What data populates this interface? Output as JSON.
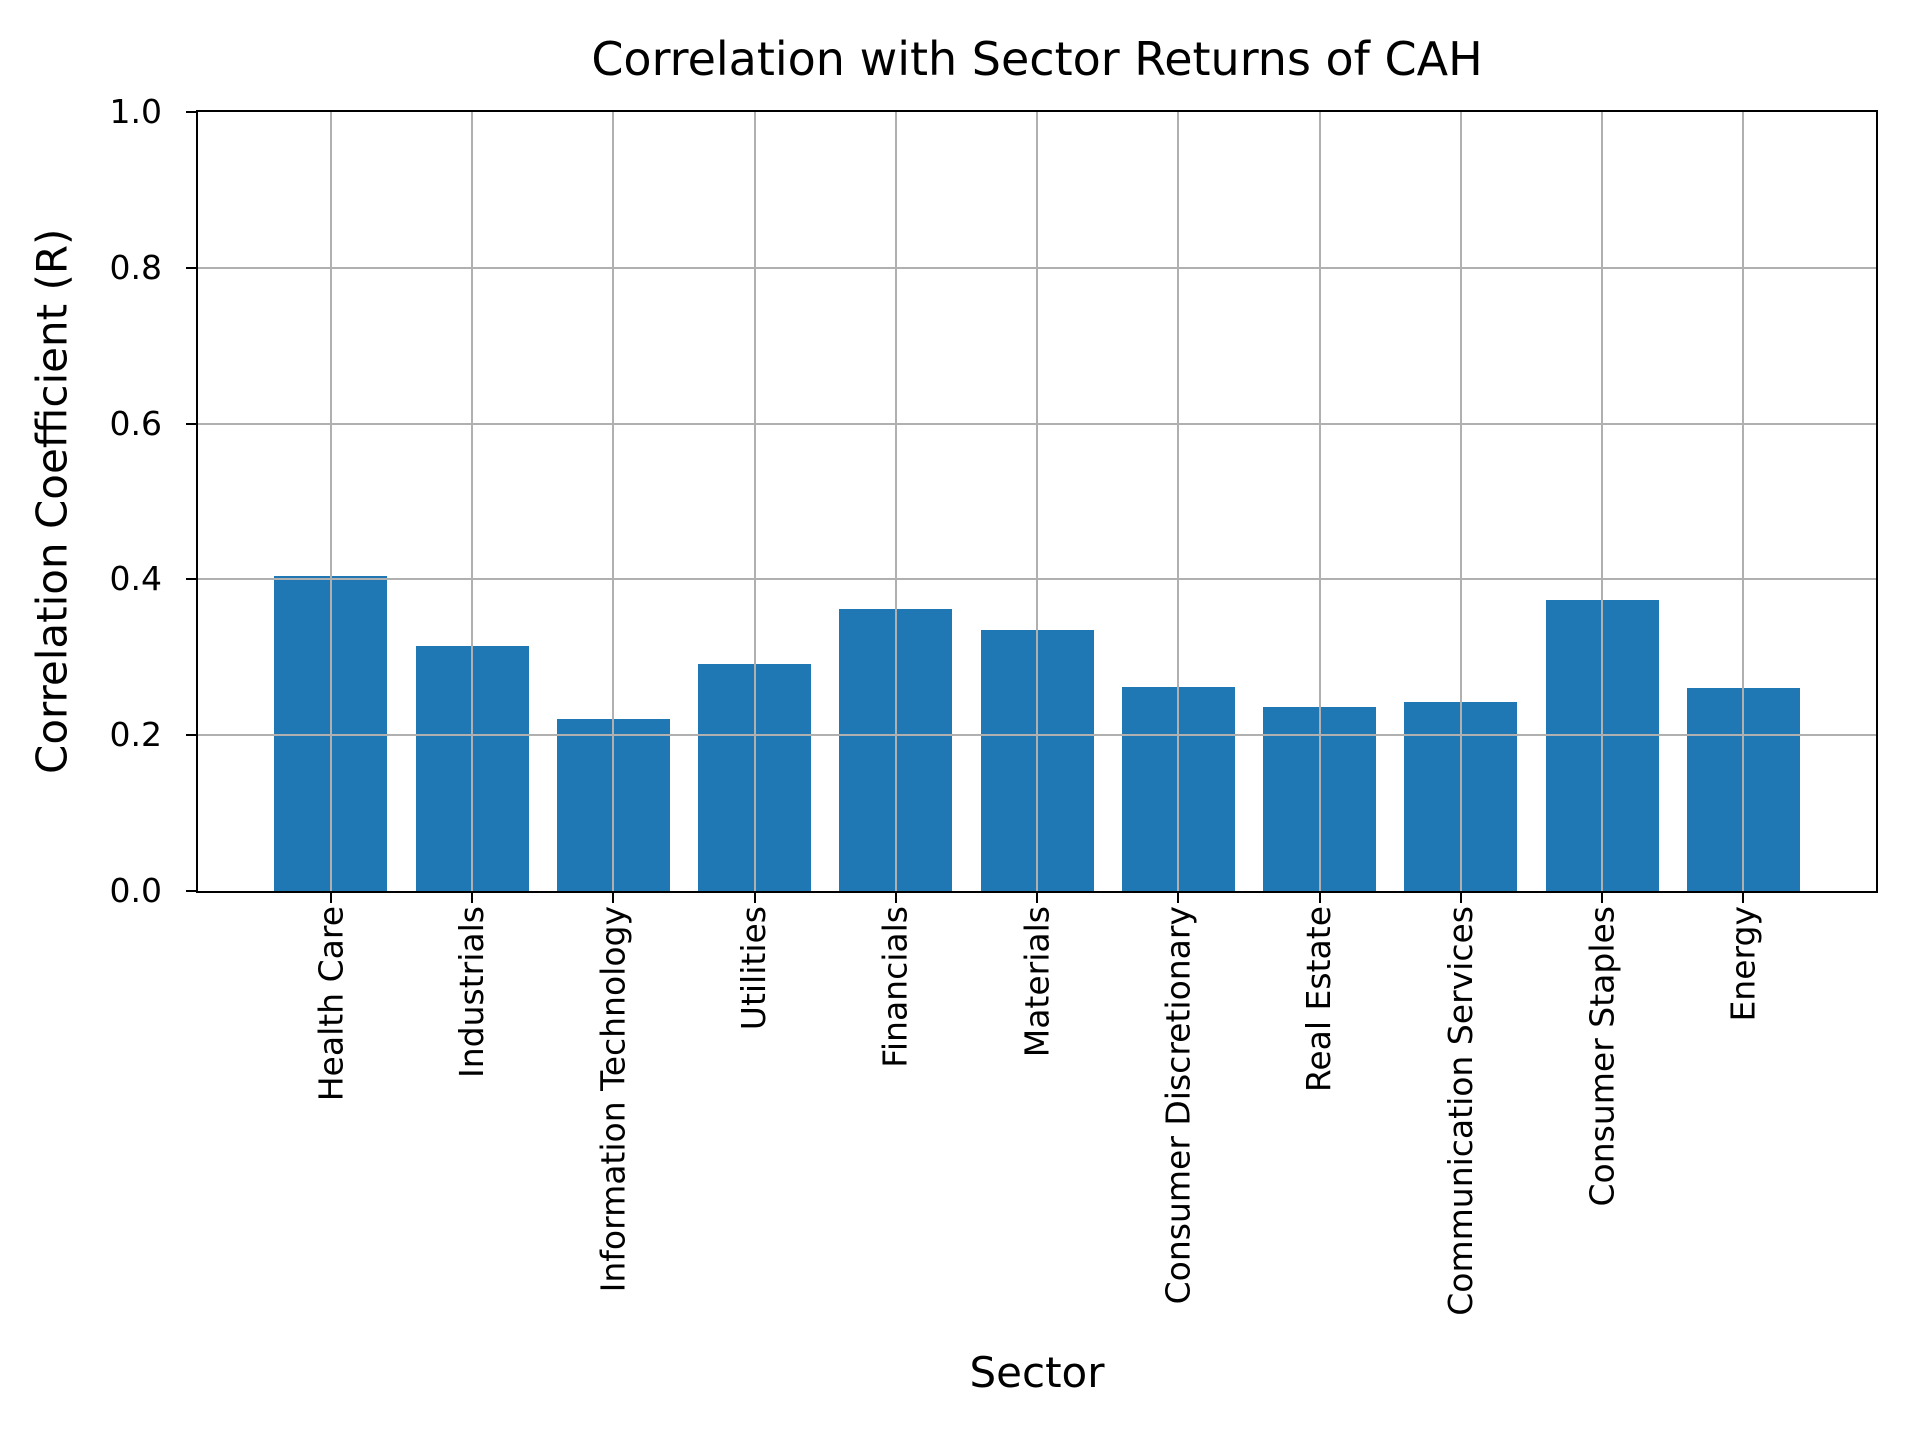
{
  "chart_data": {
    "type": "bar",
    "title": "Correlation with Sector Returns of CAH",
    "xlabel": "Sector",
    "ylabel": "Correlation Coefficient (R)",
    "categories": [
      "Health Care",
      "Industrials",
      "Information Technology",
      "Utilities",
      "Financials",
      "Materials",
      "Consumer Discretionary",
      "Real Estate",
      "Communication Services",
      "Consumer Staples",
      "Energy"
    ],
    "values": [
      0.405,
      0.315,
      0.221,
      0.292,
      0.362,
      0.335,
      0.262,
      0.236,
      0.243,
      0.374,
      0.261
    ],
    "ylim": [
      0.0,
      1.0
    ],
    "ytick_step": 0.2,
    "ytick_labels": [
      "0.0",
      "0.2",
      "0.4",
      "0.6",
      "0.8",
      "1.0"
    ],
    "x_tick_rotation_deg": 90,
    "grid": "on",
    "legend": "none",
    "bar_color": "#1f77b4",
    "grid_color": "#b0b0b0",
    "spine_color": "#000000",
    "background_color": "#ffffff",
    "bar_width_fraction": 0.8
  }
}
